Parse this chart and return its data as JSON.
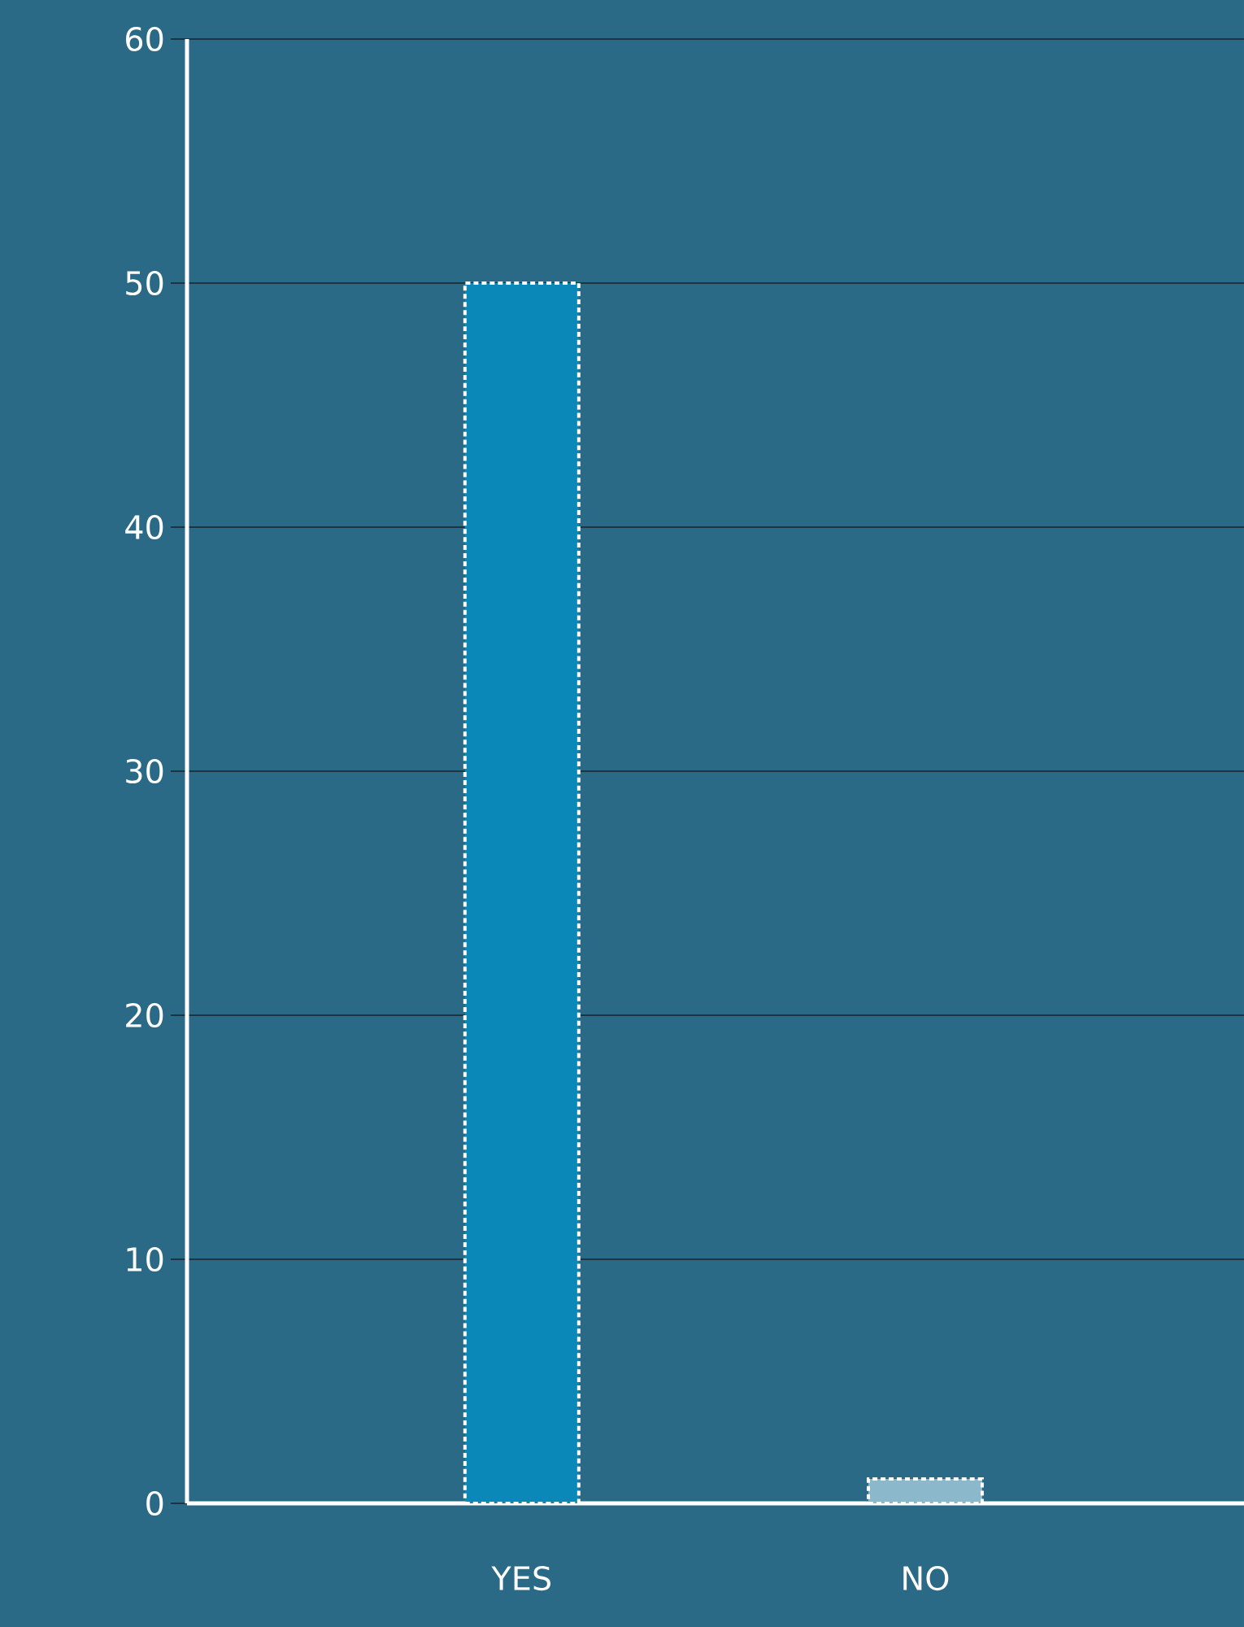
{
  "chart_data": {
    "type": "bar",
    "categories": [
      "YES",
      "NO"
    ],
    "values": [
      50,
      1
    ],
    "colors": [
      "#0a88b8",
      "#8cb8cc"
    ],
    "ylim": [
      0,
      60
    ],
    "yticks": [
      0,
      10,
      20,
      30,
      40,
      50,
      60
    ],
    "grid": "y"
  }
}
